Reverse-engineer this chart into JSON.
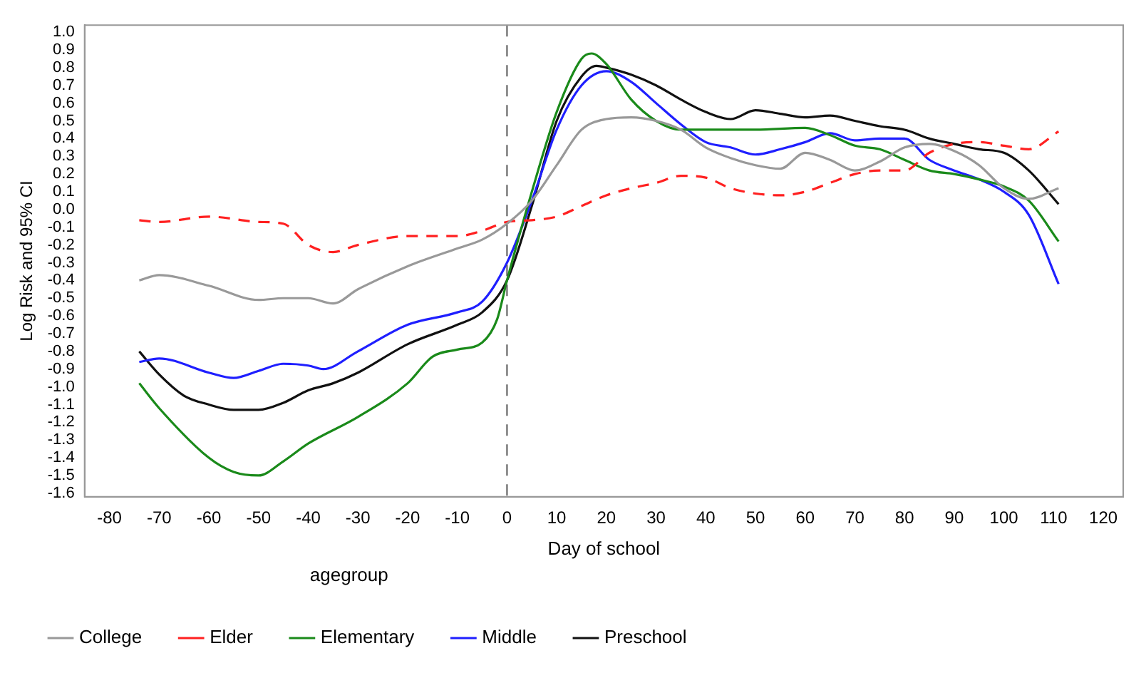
{
  "chart_data": {
    "type": "line",
    "xlabel": "Day of school",
    "ylabel": "Log Risk and 95% CI",
    "legend_title": "agegroup",
    "legend": "bottom",
    "grid": false,
    "marker": "none",
    "line_style": "solid",
    "xlim": [
      -85,
      124
    ],
    "xticks": [
      -80,
      -70,
      -60,
      -50,
      -40,
      -30,
      -20,
      -10,
      0,
      10,
      20,
      30,
      40,
      50,
      60,
      70,
      80,
      90,
      100,
      110,
      120
    ],
    "ylim": [
      -1.62,
      1.04
    ],
    "yticks": [
      {
        "value": 1,
        "label": "1.0"
      },
      0.9,
      0.8,
      0.7,
      0.6,
      0.5,
      0.4,
      0.3,
      0.2,
      0.1,
      {
        "value": 0,
        "label": "0.0"
      },
      -0.1,
      -0.2,
      -0.3,
      -0.4,
      -0.5,
      -0.6,
      -0.7,
      -0.8,
      -0.9,
      {
        "value": -1,
        "label": "-1.0"
      },
      -1.1,
      -1.2,
      -1.3,
      -1.4,
      -1.5,
      -1.6
    ],
    "ref_lines": [
      {
        "axis": "x",
        "value": 0,
        "color": "#555555",
        "line_style": "dashed"
      }
    ],
    "series": [
      {
        "name": "College",
        "color": "#999999",
        "x": [
          -74,
          -70,
          -60,
          -50,
          -45,
          -40,
          -35,
          -30,
          -20,
          -10,
          -5,
          0,
          5,
          10,
          15,
          20,
          25,
          30,
          35,
          40,
          45,
          50,
          55,
          60,
          65,
          70,
          75,
          80,
          85,
          90,
          95,
          100,
          105,
          111
        ],
        "values": [
          -0.4,
          -0.37,
          -0.43,
          -0.51,
          -0.5,
          -0.5,
          -0.53,
          -0.45,
          -0.32,
          -0.22,
          -0.17,
          -0.08,
          0.05,
          0.25,
          0.45,
          0.51,
          0.52,
          0.5,
          0.45,
          0.35,
          0.29,
          0.25,
          0.23,
          0.32,
          0.28,
          0.22,
          0.27,
          0.35,
          0.37,
          0.33,
          0.25,
          0.12,
          0.06,
          0.12
        ]
      },
      {
        "name": "Elder",
        "color": "#ff2020",
        "line_style": "dashed",
        "x": [
          -74,
          -70,
          -60,
          -50,
          -45,
          -40,
          -35,
          -30,
          -20,
          -10,
          -5,
          0,
          5,
          10,
          15,
          20,
          25,
          30,
          35,
          40,
          45,
          50,
          55,
          60,
          65,
          70,
          75,
          80,
          85,
          90,
          95,
          100,
          105,
          111
        ],
        "values": [
          -0.06,
          -0.07,
          -0.04,
          -0.07,
          -0.08,
          -0.2,
          -0.24,
          -0.2,
          -0.15,
          -0.15,
          -0.12,
          -0.07,
          -0.06,
          -0.04,
          0.02,
          0.08,
          0.12,
          0.15,
          0.19,
          0.18,
          0.12,
          0.09,
          0.08,
          0.1,
          0.15,
          0.2,
          0.22,
          0.22,
          0.32,
          0.37,
          0.38,
          0.36,
          0.34,
          0.44
        ]
      },
      {
        "name": "Elementary",
        "color": "#1a8a1a",
        "x": [
          -74,
          -70,
          -60,
          -55,
          -50,
          -45,
          -40,
          -30,
          -20,
          -15,
          -10,
          -5,
          -2,
          0,
          5,
          10,
          15,
          17,
          20,
          25,
          30,
          35,
          40,
          50,
          60,
          65,
          70,
          75,
          80,
          85,
          90,
          95,
          100,
          105,
          111
        ],
        "values": [
          -0.98,
          -1.12,
          -1.4,
          -1.48,
          -1.5,
          -1.42,
          -1.32,
          -1.17,
          -0.98,
          -0.83,
          -0.79,
          -0.75,
          -0.62,
          -0.4,
          0.1,
          0.55,
          0.85,
          0.88,
          0.82,
          0.62,
          0.5,
          0.45,
          0.45,
          0.45,
          0.46,
          0.42,
          0.36,
          0.34,
          0.28,
          0.22,
          0.2,
          0.17,
          0.13,
          0.05,
          -0.18
        ]
      },
      {
        "name": "Middle",
        "color": "#1f1fff",
        "x": [
          -74,
          -70,
          -60,
          -55,
          -50,
          -45,
          -40,
          -37,
          -30,
          -20,
          -10,
          -5,
          0,
          5,
          10,
          15,
          20,
          25,
          30,
          35,
          40,
          45,
          50,
          55,
          60,
          65,
          70,
          75,
          80,
          85,
          90,
          95,
          100,
          105,
          111
        ],
        "values": [
          -0.86,
          -0.84,
          -0.92,
          -0.95,
          -0.91,
          -0.87,
          -0.88,
          -0.9,
          -0.8,
          -0.65,
          -0.58,
          -0.52,
          -0.3,
          0.05,
          0.45,
          0.7,
          0.78,
          0.72,
          0.6,
          0.48,
          0.38,
          0.35,
          0.31,
          0.34,
          0.38,
          0.43,
          0.39,
          0.4,
          0.4,
          0.28,
          0.22,
          0.17,
          0.1,
          -0.03,
          -0.42
        ]
      },
      {
        "name": "Preschool",
        "color": "#111111",
        "x": [
          -74,
          -70,
          -65,
          -60,
          -55,
          -50,
          -45,
          -40,
          -35,
          -30,
          -20,
          -10,
          -5,
          0,
          5,
          10,
          15,
          18,
          20,
          25,
          30,
          35,
          40,
          45,
          50,
          55,
          60,
          65,
          70,
          75,
          80,
          85,
          90,
          95,
          100,
          105,
          111
        ],
        "values": [
          -0.8,
          -0.93,
          -1.05,
          -1.1,
          -1.13,
          -1.13,
          -1.09,
          -1.02,
          -0.98,
          -0.92,
          -0.76,
          -0.65,
          -0.58,
          -0.4,
          0.02,
          0.5,
          0.75,
          0.81,
          0.8,
          0.76,
          0.7,
          0.62,
          0.55,
          0.51,
          0.56,
          0.54,
          0.52,
          0.53,
          0.5,
          0.47,
          0.45,
          0.4,
          0.37,
          0.34,
          0.32,
          0.22,
          0.03
        ]
      }
    ]
  }
}
